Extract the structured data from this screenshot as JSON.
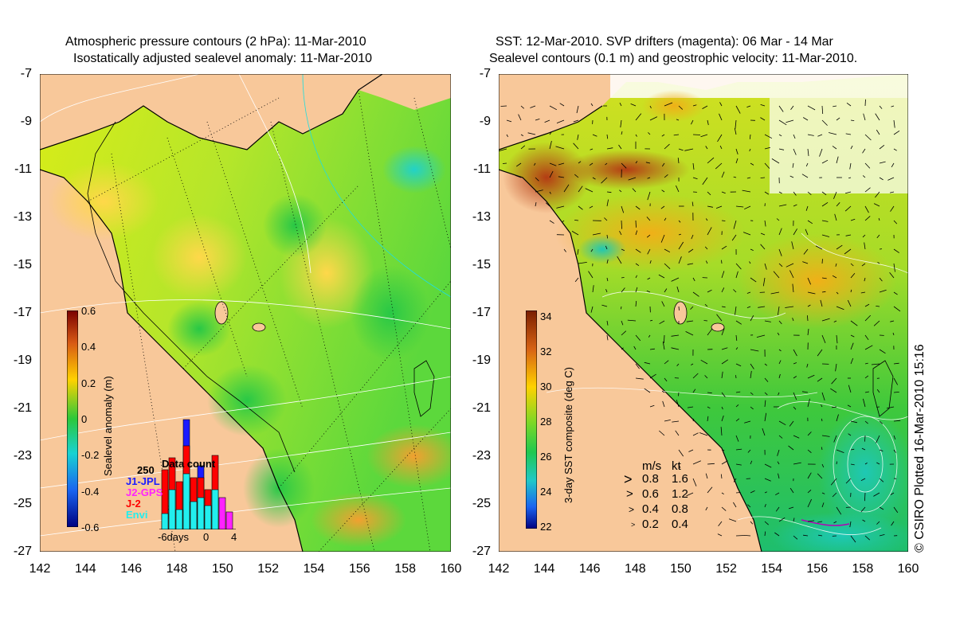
{
  "left_panel": {
    "title_line1": "Atmospheric pressure contours (2 hPa): 11-Mar-2010",
    "title_line2": "Isostatically adjusted sealevel anomaly: 11-Mar-2010",
    "colorbar": {
      "label": "Sealevel anomaly (m)",
      "ticks": [
        "0.6",
        "0.4",
        "0.2",
        "0",
        "-0.2",
        "-0.4",
        "-0.6"
      ]
    },
    "data_count": {
      "title": "Data count",
      "max_label": "250",
      "series": [
        {
          "name": "J1-JPL",
          "color": "#1a1aff"
        },
        {
          "name": "J2-GPS",
          "color": "#ff22ff"
        },
        {
          "name": "J-2",
          "color": "#ff0000"
        },
        {
          "name": "Envi",
          "color": "#22eeee"
        }
      ],
      "x_labels": [
        "-6days",
        "0",
        "4"
      ]
    }
  },
  "right_panel": {
    "title_line1": "SST: 12-Mar-2010. SVP drifters (magenta): 06 Mar - 14 Mar",
    "title_line2": "Sealevel contours (0.1 m) and geostrophic velocity: 11-Mar-2010.",
    "colorbar": {
      "label": "3-day SST composite (deg C)",
      "ticks": [
        "34",
        "32",
        "30",
        "28",
        "26",
        "24",
        "22"
      ]
    },
    "velocity_key": {
      "header_ms": "m/s",
      "header_kt": "kt",
      "rows": [
        {
          "ms": "0.8",
          "kt": "1.6"
        },
        {
          "ms": "0.6",
          "kt": "1.2"
        },
        {
          "ms": "0.4",
          "kt": "0.8"
        },
        {
          "ms": "0.2",
          "kt": "0.4"
        }
      ]
    }
  },
  "axes": {
    "lat_labels": [
      "-7",
      "-9",
      "-11",
      "-13",
      "-15",
      "-17",
      "-19",
      "-21",
      "-23",
      "-25",
      "-27"
    ],
    "lon_labels": [
      "142",
      "144",
      "146",
      "148",
      "150",
      "152",
      "154",
      "156",
      "158",
      "160"
    ]
  },
  "credit": "© CSIRO Plotted 16-Mar-2010 15:16",
  "colors": {
    "land": "#f8c89a",
    "sea_high": "#ffd400",
    "sea_mid": "#aee81a",
    "sea_low": "#1ec832",
    "sst_warm": "#c8501e",
    "sst_cool": "#1eb4a0"
  }
}
